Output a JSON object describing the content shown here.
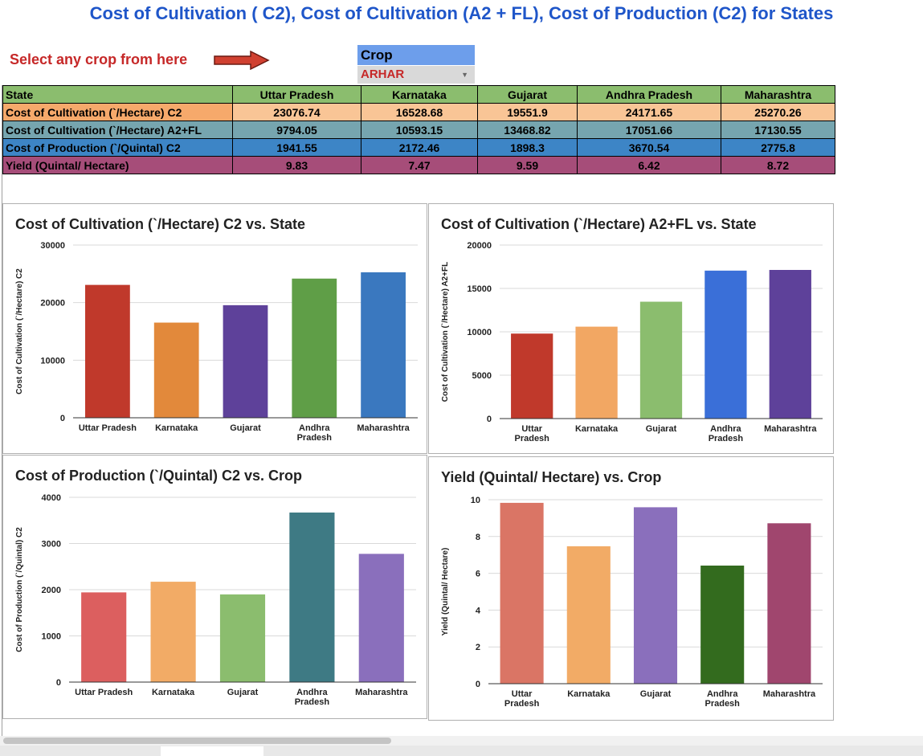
{
  "title": "Cost of Cultivation ( C2), Cost of Cultivation (A2 + FL), Cost of Production (C2) for States",
  "selector": {
    "label": "Select any crop from here",
    "header": "Crop",
    "value": "ARHAR"
  },
  "table": {
    "header": [
      "State",
      "Uttar Pradesh",
      "Karnataka",
      "Gujarat",
      "Andhra Pradesh",
      "Maharashtra"
    ],
    "rows": [
      {
        "label": "Cost of Cultivation (`/Hectare) C2",
        "values": [
          "23076.74",
          "16528.68",
          "19551.9",
          "24171.65",
          "25270.26"
        ]
      },
      {
        "label": "Cost of Cultivation (`/Hectare) A2+FL",
        "values": [
          "9794.05",
          "10593.15",
          "13468.82",
          "17051.66",
          "17130.55"
        ]
      },
      {
        "label": "Cost of Production (`/Quintal) C2",
        "values": [
          "1941.55",
          "2172.46",
          "1898.3",
          "3670.54",
          "2775.8"
        ]
      },
      {
        "label": "Yield (Quintal/ Hectare)",
        "values": [
          "9.83",
          "7.47",
          "9.59",
          "6.42",
          "8.72"
        ]
      }
    ]
  },
  "colors": {
    "title": "#1f56c9",
    "header_row": "#8bbd6e",
    "row_c2": "#f9c596",
    "row_c2_label": "#f6a96b",
    "row_a2fl": "#76a5af",
    "row_cop": "#3d85c6",
    "row_yield": "#a64d79",
    "crop_header": "#6d9eeb",
    "crop_value": "#c62828"
  },
  "chart_data": [
    {
      "type": "bar",
      "title": "Cost of Cultivation (`/Hectare) C2 vs. State",
      "ylabel": "Cost of Cultivation (`/Hectare) C2",
      "categories": [
        "Uttar Pradesh",
        "Karnataka",
        "Gujarat",
        "Andhra Pradesh",
        "Maharashtra"
      ],
      "values": [
        23076.74,
        16528.68,
        19551.9,
        24171.65,
        25270.26
      ],
      "ylim": [
        0,
        30000
      ],
      "yticks": [
        0,
        10000,
        20000,
        30000
      ],
      "colors": [
        "#c0392b",
        "#e2893b",
        "#5e419a",
        "#5f9e47",
        "#3a78bf"
      ],
      "grid": true
    },
    {
      "type": "bar",
      "title": "Cost of Cultivation (`/Hectare) A2+FL vs. State",
      "ylabel": "Cost of Cultivation (`/Hectare) A2+FL",
      "categories": [
        "Uttar Pradesh",
        "Karnataka",
        "Gujarat",
        "Andhra Pradesh",
        "Maharashtra"
      ],
      "values": [
        9794.05,
        10593.15,
        13468.82,
        17051.66,
        17130.55
      ],
      "ylim": [
        0,
        20000
      ],
      "yticks": [
        0,
        5000,
        10000,
        15000,
        20000
      ],
      "colors": [
        "#c0392b",
        "#f2a763",
        "#8bbd6e",
        "#3a6fd8",
        "#5e419a"
      ],
      "grid": true
    },
    {
      "type": "bar",
      "title": "Cost of Production (`/Quintal) C2 vs. Crop",
      "ylabel": "Cost of Production (`/Quintal) C2",
      "categories": [
        "Uttar Pradesh",
        "Karnataka",
        "Gujarat",
        "Andhra Pradesh",
        "Maharashtra"
      ],
      "values": [
        1941.55,
        2172.46,
        1898.3,
        3670.54,
        2775.8
      ],
      "ylim": [
        0,
        4000
      ],
      "yticks": [
        0,
        1000,
        2000,
        3000,
        4000
      ],
      "colors": [
        "#dc5f5f",
        "#f2ab66",
        "#8bbd6e",
        "#3e7a84",
        "#8a6fbc"
      ],
      "grid": true
    },
    {
      "type": "bar",
      "title": "Yield (Quintal/ Hectare) vs. Crop",
      "ylabel": "Yield (Quintal/ Hectare)",
      "categories": [
        "Uttar Pradesh",
        "Karnataka",
        "Gujarat",
        "Andhra Pradesh",
        "Maharashtra"
      ],
      "values": [
        9.83,
        7.47,
        9.59,
        6.42,
        8.72
      ],
      "ylim": [
        0,
        10
      ],
      "yticks": [
        0,
        2,
        4,
        6,
        8,
        10
      ],
      "colors": [
        "#da7565",
        "#f2ab66",
        "#8a6fbc",
        "#336b1e",
        "#a0466e"
      ],
      "grid": true
    }
  ]
}
